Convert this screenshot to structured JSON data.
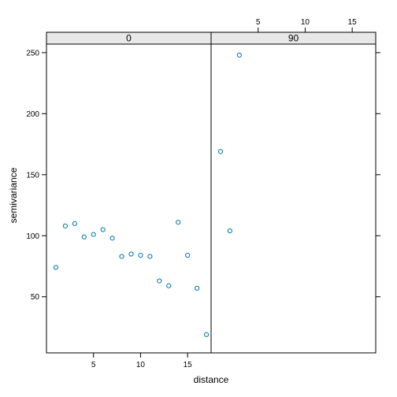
{
  "chart_data": {
    "type": "scatter",
    "xlabel": "distance",
    "ylabel": "semivariance",
    "xlim": [
      0,
      17.5
    ],
    "ylim": [
      4,
      257
    ],
    "x_ticks": [
      5,
      10,
      15
    ],
    "y_ticks": [
      50,
      100,
      150,
      200,
      250
    ],
    "grid": false,
    "legend": "none",
    "marker": "open-circle",
    "color": "#0072b2",
    "panels": [
      {
        "strip": "0",
        "x": [
          1,
          2,
          3,
          4,
          5,
          6,
          7,
          8,
          9,
          10,
          11,
          12,
          13,
          14,
          15,
          16,
          17
        ],
        "y": [
          74,
          108,
          110,
          99,
          101,
          105,
          98,
          83,
          85,
          84,
          83,
          63,
          59,
          111,
          84,
          57,
          19
        ]
      },
      {
        "strip": "90",
        "x": [
          1,
          2,
          3
        ],
        "y": [
          169,
          104,
          248
        ]
      }
    ]
  }
}
